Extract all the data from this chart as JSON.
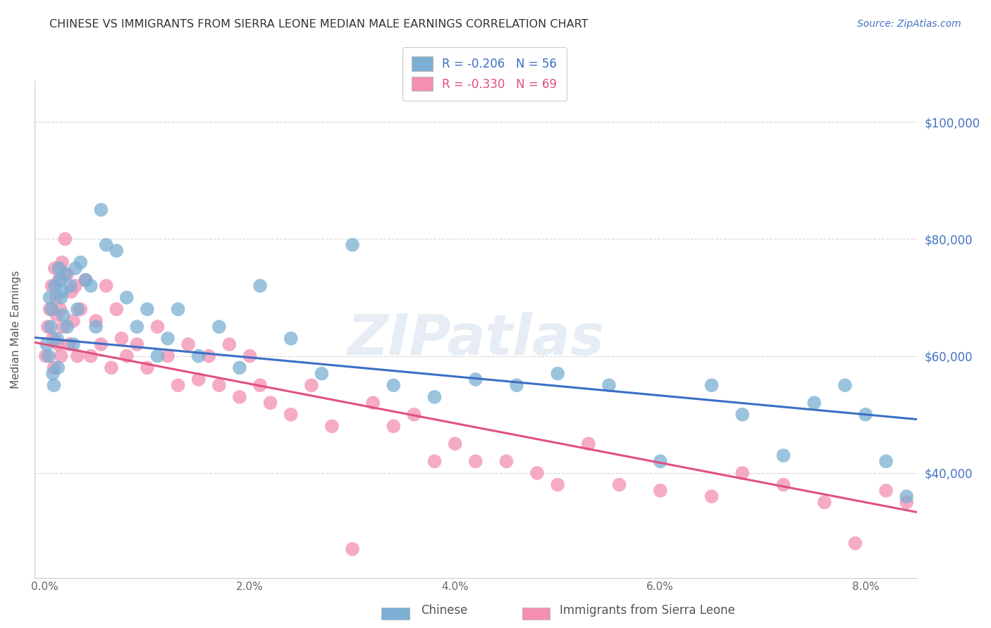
{
  "title": "CHINESE VS IMMIGRANTS FROM SIERRA LEONE MEDIAN MALE EARNINGS CORRELATION CHART",
  "source": "Source: ZipAtlas.com",
  "ylabel": "Median Male Earnings",
  "xlabel_ticks": [
    "0.0%",
    "2.0%",
    "4.0%",
    "6.0%",
    "8.0%"
  ],
  "xlabel_vals": [
    0.0,
    0.02,
    0.04,
    0.06,
    0.08
  ],
  "ytick_labels": [
    "$40,000",
    "$60,000",
    "$80,000",
    "$100,000"
  ],
  "ytick_vals": [
    40000,
    60000,
    80000,
    100000
  ],
  "ylim": [
    22000,
    107000
  ],
  "xlim": [
    -0.001,
    0.085
  ],
  "legend_entries": [
    {
      "label": "R = -0.206   N = 56",
      "color": "#a8c4e0"
    },
    {
      "label": "R = -0.330   N = 69",
      "color": "#f4a0b8"
    }
  ],
  "bottom_legend": [
    "Chinese",
    "Immigrants from Sierra Leone"
  ],
  "watermark": "ZIPatlas",
  "blue_color": "#7bafd4",
  "pink_color": "#f48fb1",
  "blue_line_color": "#3b6fc4",
  "pink_line_color": "#e05080",
  "grid_color": "#cccccc",
  "title_color": "#333333",
  "axis_label_color": "#555555",
  "right_tick_color": "#4472c4",
  "chinese_x": [
    0.0002,
    0.0004,
    0.0005,
    0.0006,
    0.0007,
    0.0008,
    0.0009,
    0.001,
    0.0012,
    0.0013,
    0.0014,
    0.0015,
    0.0016,
    0.0017,
    0.0018,
    0.002,
    0.0022,
    0.0025,
    0.0028,
    0.003,
    0.0032,
    0.0035,
    0.004,
    0.0045,
    0.005,
    0.0055,
    0.006,
    0.007,
    0.008,
    0.009,
    0.01,
    0.011,
    0.012,
    0.013,
    0.015,
    0.017,
    0.019,
    0.021,
    0.024,
    0.027,
    0.03,
    0.034,
    0.038,
    0.042,
    0.046,
    0.05,
    0.055,
    0.06,
    0.065,
    0.068,
    0.072,
    0.075,
    0.078,
    0.08,
    0.082,
    0.084
  ],
  "chinese_y": [
    62000,
    60000,
    70000,
    65000,
    68000,
    57000,
    55000,
    72000,
    63000,
    58000,
    75000,
    73000,
    70000,
    71000,
    67000,
    74000,
    65000,
    72000,
    62000,
    75000,
    68000,
    76000,
    73000,
    72000,
    65000,
    85000,
    79000,
    78000,
    70000,
    65000,
    68000,
    60000,
    63000,
    68000,
    60000,
    65000,
    58000,
    72000,
    63000,
    57000,
    79000,
    55000,
    53000,
    56000,
    55000,
    57000,
    55000,
    42000,
    55000,
    50000,
    43000,
    52000,
    55000,
    50000,
    42000,
    36000
  ],
  "sierra_x": [
    0.0001,
    0.0003,
    0.0005,
    0.0007,
    0.0008,
    0.0009,
    0.001,
    0.0011,
    0.0012,
    0.0013,
    0.0014,
    0.0015,
    0.0016,
    0.0017,
    0.0018,
    0.002,
    0.0022,
    0.0024,
    0.0026,
    0.0028,
    0.003,
    0.0032,
    0.0035,
    0.004,
    0.0045,
    0.005,
    0.0055,
    0.006,
    0.0065,
    0.007,
    0.0075,
    0.008,
    0.009,
    0.01,
    0.011,
    0.012,
    0.013,
    0.014,
    0.015,
    0.016,
    0.017,
    0.018,
    0.019,
    0.02,
    0.021,
    0.022,
    0.024,
    0.026,
    0.028,
    0.03,
    0.032,
    0.034,
    0.036,
    0.038,
    0.04,
    0.042,
    0.045,
    0.048,
    0.05,
    0.053,
    0.056,
    0.06,
    0.065,
    0.068,
    0.072,
    0.076,
    0.079,
    0.082,
    0.084
  ],
  "sierra_y": [
    60000,
    65000,
    68000,
    72000,
    63000,
    58000,
    75000,
    70000,
    67000,
    62000,
    73000,
    68000,
    60000,
    76000,
    65000,
    80000,
    74000,
    62000,
    71000,
    66000,
    72000,
    60000,
    68000,
    73000,
    60000,
    66000,
    62000,
    72000,
    58000,
    68000,
    63000,
    60000,
    62000,
    58000,
    65000,
    60000,
    55000,
    62000,
    56000,
    60000,
    55000,
    62000,
    53000,
    60000,
    55000,
    52000,
    50000,
    55000,
    48000,
    27000,
    52000,
    48000,
    50000,
    42000,
    45000,
    42000,
    42000,
    40000,
    38000,
    45000,
    38000,
    37000,
    36000,
    40000,
    38000,
    35000,
    28000,
    37000,
    35000
  ]
}
